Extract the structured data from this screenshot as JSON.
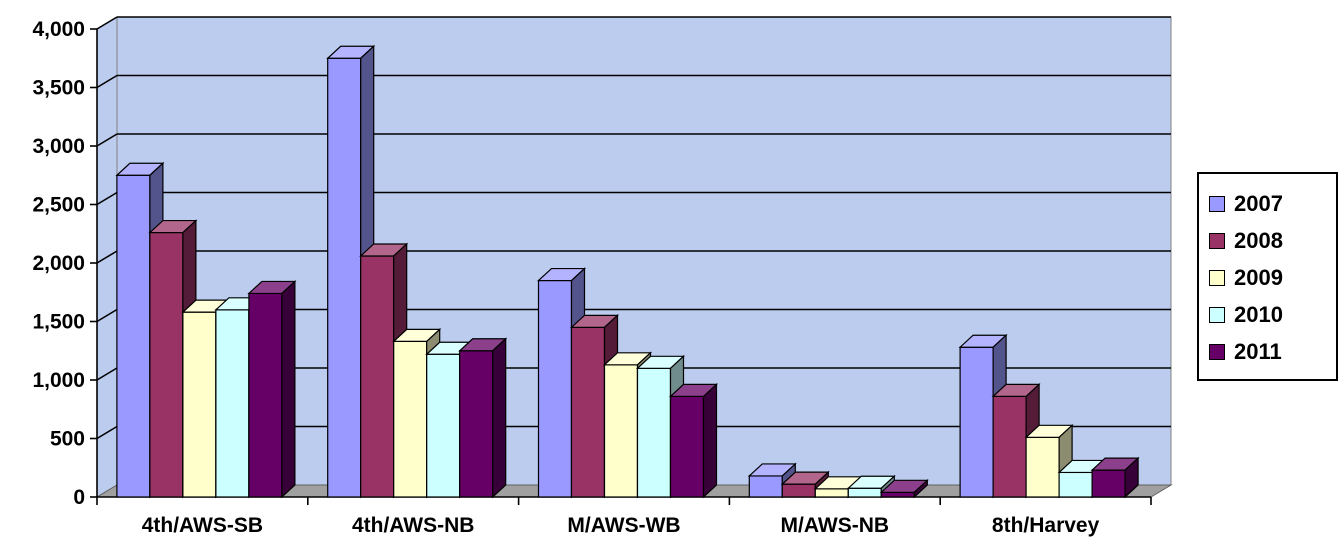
{
  "chart_data": {
    "type": "bar",
    "title": "",
    "xlabel": "",
    "ylabel": "",
    "ylim": [
      0,
      4000
    ],
    "yticks": [
      "0",
      "500",
      "1,000",
      "1,500",
      "2,000",
      "2,500",
      "3,000",
      "3,500",
      "4,000"
    ],
    "ytick_values": [
      0,
      500,
      1000,
      1500,
      2000,
      2500,
      3000,
      3500,
      4000
    ],
    "categories": [
      "4th/AWS-SB",
      "4th/AWS-NB",
      "M/AWS-WB",
      "M/AWS-NB",
      "8th/Harvey"
    ],
    "series": [
      {
        "name": "2007",
        "color": "#9999FF",
        "values": [
          2750,
          3750,
          1850,
          180,
          1280
        ]
      },
      {
        "name": "2008",
        "color": "#993366",
        "values": [
          2260,
          2060,
          1450,
          110,
          860
        ]
      },
      {
        "name": "2009",
        "color": "#FFFFCC",
        "values": [
          1580,
          1330,
          1130,
          70,
          510
        ]
      },
      {
        "name": "2010",
        "color": "#CCFFFF",
        "values": [
          1600,
          1220,
          1100,
          75,
          210
        ]
      },
      {
        "name": "2011",
        "color": "#660066",
        "values": [
          1740,
          1250,
          860,
          40,
          230
        ]
      }
    ],
    "grid": true,
    "legend_position": "right",
    "plot_background": "#BBCCEE",
    "style": "3d-clustered-column"
  }
}
